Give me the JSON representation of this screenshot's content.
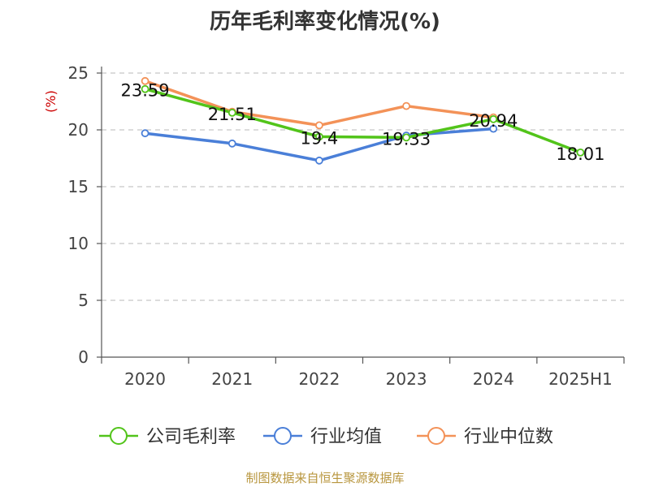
{
  "chart_data": {
    "type": "line",
    "title": "历年毛利率变化情况(%)",
    "ylabel": "(%)",
    "xlabel": "",
    "categories": [
      "2020",
      "2021",
      "2022",
      "2023",
      "2024",
      "2025H1"
    ],
    "ylim": [
      0,
      25
    ],
    "yticks": [
      0,
      5,
      10,
      15,
      20,
      25
    ],
    "grid": true,
    "legend_position": "bottom",
    "series": [
      {
        "name": "公司毛利率",
        "color": "#52c41a",
        "values": [
          23.59,
          21.51,
          19.4,
          19.33,
          20.94,
          18.01
        ],
        "labels": [
          "23.59",
          "21.51",
          "19.4",
          "19.33",
          "20.94",
          "18.01"
        ]
      },
      {
        "name": "行业均值",
        "color": "#4a7fd8",
        "values": [
          19.7,
          18.8,
          17.3,
          19.5,
          20.1,
          null
        ]
      },
      {
        "name": "行业中位数",
        "color": "#f39258",
        "values": [
          24.3,
          21.6,
          20.4,
          22.1,
          21.1,
          null
        ]
      }
    ]
  },
  "source": "制图数据来自恒生聚源数据库"
}
